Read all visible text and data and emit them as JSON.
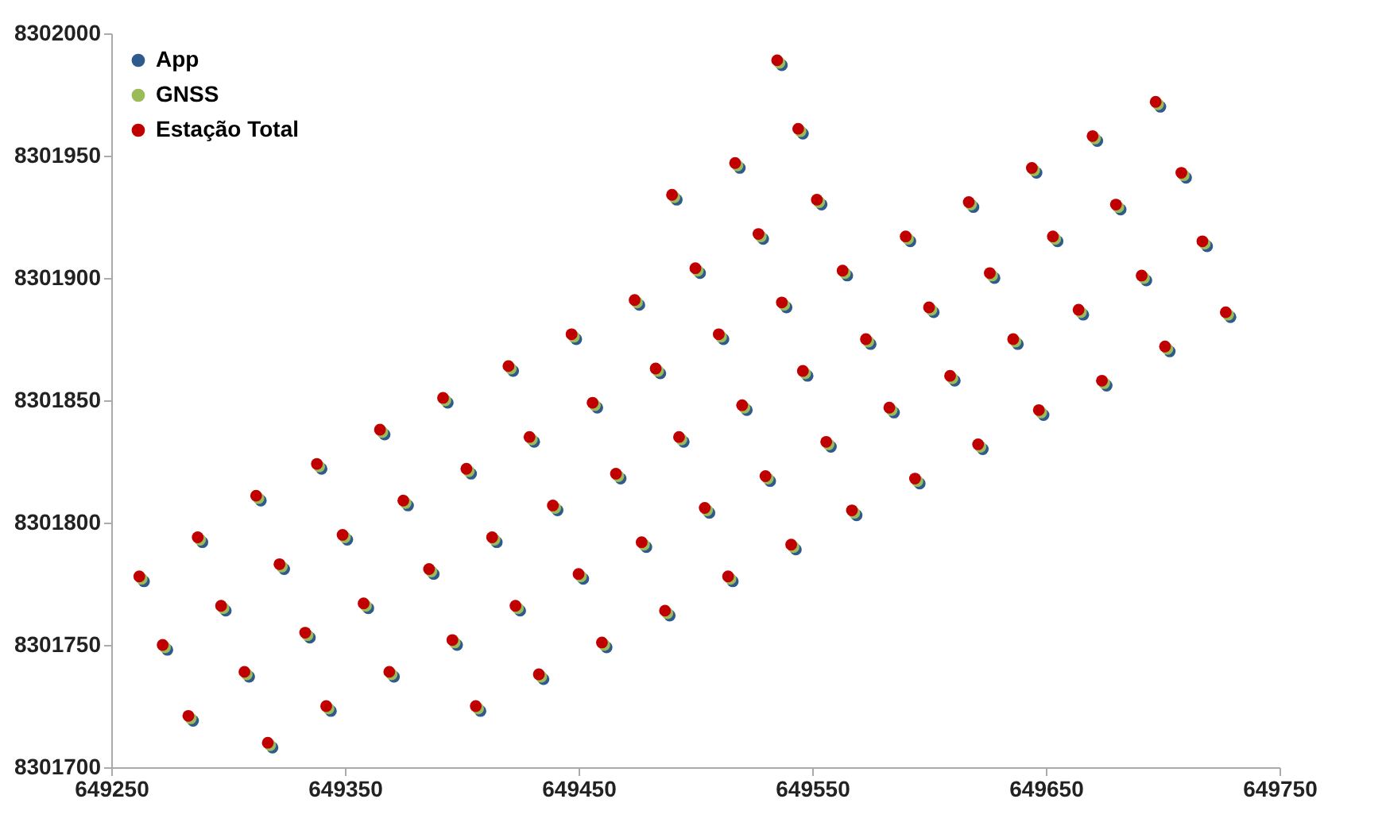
{
  "chart_data": {
    "type": "scatter",
    "x": [
      649262,
      649272,
      649283,
      649287,
      649297,
      649307,
      649312,
      649317,
      649322,
      649333,
      649338,
      649342,
      649349,
      649358,
      649365,
      649369,
      649375,
      649386,
      649392,
      649396,
      649402,
      649406,
      649413,
      649423,
      649429,
      649433,
      649439,
      649450,
      649456,
      649460,
      649466,
      649477,
      649483,
      649487,
      649490,
      649493,
      649500,
      649504,
      649510,
      649514,
      649517,
      649520,
      649527,
      649530,
      649535,
      649537,
      649541,
      649544,
      649546,
      649552,
      649556,
      649563,
      649567,
      649573,
      649583,
      649590,
      649594,
      649600,
      649609,
      649617,
      649621,
      649626,
      649636,
      649644,
      649647,
      649653,
      649664,
      649670,
      649674,
      649680,
      649691,
      649697,
      649701,
      649708,
      649717,
      649727,
      649474,
      649447,
      649420
    ],
    "series": [
      {
        "name": "App",
        "color": "#2f5b8c",
        "x": [
          649264,
          649274,
          649285,
          649289,
          649299,
          649309,
          649314,
          649319,
          649324,
          649335,
          649340,
          649344,
          649351,
          649360,
          649367,
          649371,
          649377,
          649388,
          649394,
          649398,
          649404,
          649408,
          649415,
          649425,
          649431,
          649435,
          649441,
          649452,
          649458,
          649462,
          649468,
          649479,
          649485,
          649489,
          649492,
          649495,
          649502,
          649506,
          649512,
          649516,
          649519,
          649522,
          649529,
          649532,
          649537,
          649539,
          649543,
          649546,
          649548,
          649554,
          649558,
          649565,
          649569,
          649575,
          649585,
          649592,
          649596,
          649602,
          649611,
          649619,
          649623,
          649628,
          649638,
          649646,
          649649,
          649655,
          649666,
          649672,
          649676,
          649682,
          649693,
          649699,
          649703,
          649710,
          649719,
          649729,
          649476,
          649449,
          649422
        ],
        "values": [
          8301776,
          8301748,
          8301719,
          8301792,
          8301764,
          8301737,
          8301809,
          8301708,
          8301781,
          8301753,
          8301822,
          8301723,
          8301793,
          8301765,
          8301836,
          8301737,
          8301807,
          8301779,
          8301849,
          8301750,
          8301820,
          8301723,
          8301792,
          8301764,
          8301833,
          8301736,
          8301805,
          8301777,
          8301847,
          8301749,
          8301818,
          8301790,
          8301861,
          8301762,
          8301932,
          8301833,
          8301902,
          8301804,
          8301875,
          8301776,
          8301945,
          8301846,
          8301916,
          8301817,
          8301987,
          8301888,
          8301789,
          8301959,
          8301860,
          8301930,
          8301831,
          8301901,
          8301803,
          8301873,
          8301845,
          8301915,
          8301816,
          8301886,
          8301858,
          8301929,
          8301830,
          8301900,
          8301873,
          8301943,
          8301844,
          8301915,
          8301885,
          8301956,
          8301856,
          8301928,
          8301899,
          8301970,
          8301870,
          8301941,
          8301913,
          8301884,
          8301889,
          8301875,
          8301862
        ]
      },
      {
        "name": "GNSS",
        "color": "#9bbb59",
        "x": [
          649263,
          649273,
          649284,
          649288,
          649298,
          649308,
          649313,
          649318,
          649323,
          649334,
          649339,
          649343,
          649350,
          649359,
          649366,
          649370,
          649376,
          649387,
          649393,
          649397,
          649403,
          649407,
          649414,
          649424,
          649430,
          649434,
          649440,
          649451,
          649457,
          649461,
          649467,
          649478,
          649484,
          649488,
          649491,
          649494,
          649501,
          649505,
          649511,
          649515,
          649518,
          649521,
          649528,
          649531,
          649536,
          649538,
          649542,
          649545,
          649547,
          649553,
          649557,
          649564,
          649568,
          649574,
          649584,
          649591,
          649595,
          649601,
          649610,
          649618,
          649622,
          649627,
          649637,
          649645,
          649648,
          649654,
          649665,
          649671,
          649675,
          649681,
          649692,
          649698,
          649702,
          649709,
          649718,
          649728,
          649475,
          649448,
          649421
        ],
        "values": [
          8301777,
          8301749,
          8301720,
          8301793,
          8301765,
          8301738,
          8301810,
          8301709,
          8301782,
          8301754,
          8301823,
          8301724,
          8301794,
          8301766,
          8301837,
          8301738,
          8301808,
          8301780,
          8301850,
          8301751,
          8301821,
          8301724,
          8301793,
          8301765,
          8301834,
          8301737,
          8301806,
          8301778,
          8301848,
          8301750,
          8301819,
          8301791,
          8301862,
          8301763,
          8301933,
          8301834,
          8301903,
          8301805,
          8301876,
          8301777,
          8301946,
          8301847,
          8301917,
          8301818,
          8301988,
          8301889,
          8301790,
          8301960,
          8301861,
          8301931,
          8301832,
          8301902,
          8301804,
          8301874,
          8301846,
          8301916,
          8301817,
          8301887,
          8301859,
          8301930,
          8301831,
          8301901,
          8301874,
          8301944,
          8301845,
          8301916,
          8301886,
          8301957,
          8301857,
          8301929,
          8301900,
          8301971,
          8301871,
          8301942,
          8301914,
          8301885,
          8301890,
          8301876,
          8301863
        ]
      },
      {
        "name": "Estação Total",
        "color": "#c00000",
        "values": [
          8301778,
          8301750,
          8301721,
          8301794,
          8301766,
          8301739,
          8301811,
          8301710,
          8301783,
          8301755,
          8301824,
          8301725,
          8301795,
          8301767,
          8301838,
          8301739,
          8301809,
          8301781,
          8301851,
          8301752,
          8301822,
          8301725,
          8301794,
          8301766,
          8301835,
          8301738,
          8301807,
          8301779,
          8301849,
          8301751,
          8301820,
          8301792,
          8301863,
          8301764,
          8301934,
          8301835,
          8301904,
          8301806,
          8301877,
          8301778,
          8301947,
          8301848,
          8301918,
          8301819,
          8301989,
          8301890,
          8301791,
          8301961,
          8301862,
          8301932,
          8301833,
          8301903,
          8301805,
          8301875,
          8301847,
          8301917,
          8301818,
          8301888,
          8301860,
          8301931,
          8301832,
          8301902,
          8301875,
          8301945,
          8301846,
          8301917,
          8301887,
          8301958,
          8301858,
          8301930,
          8301901,
          8301972,
          8301872,
          8301943,
          8301915,
          8301886,
          8301891,
          8301877,
          8301864
        ]
      }
    ],
    "xlim": [
      649250,
      649750
    ],
    "xticks": [
      649250,
      649350,
      649450,
      649550,
      649650,
      649750
    ],
    "ylim": [
      8301700,
      8302000
    ],
    "yticks": [
      8301700,
      8301750,
      8301800,
      8301850,
      8301900,
      8301950,
      8302000
    ],
    "grid": false,
    "legend": "top left",
    "marker": "circle"
  }
}
